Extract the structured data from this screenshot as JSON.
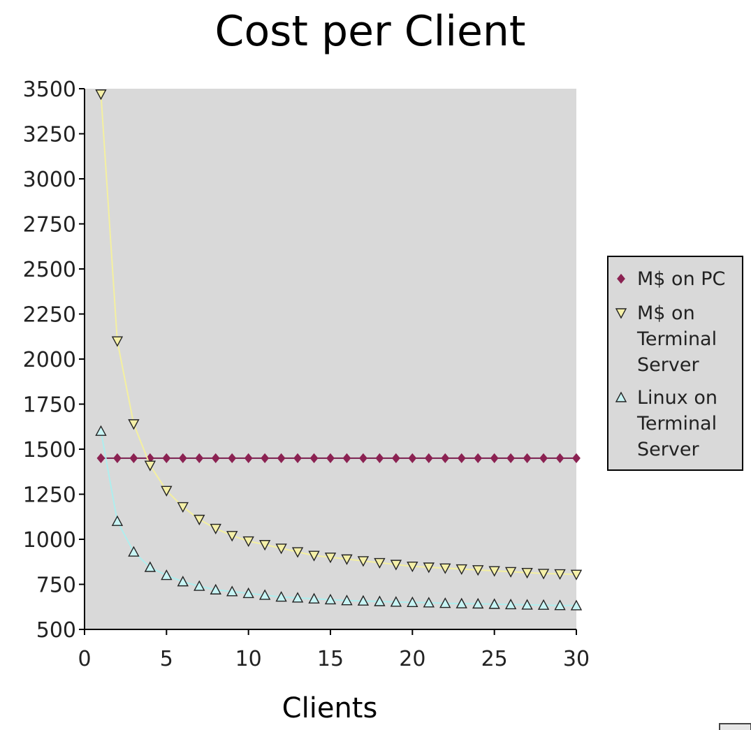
{
  "chart_data": {
    "type": "line",
    "title": "Cost per Client",
    "xlabel": "Clients",
    "ylabel": "",
    "xlim": [
      0,
      30
    ],
    "ylim": [
      500,
      3500
    ],
    "xticks": [
      "0",
      "5",
      "10",
      "15",
      "20",
      "25",
      "30"
    ],
    "yticks": [
      "500",
      "750",
      "1000",
      "1250",
      "1500",
      "1750",
      "2000",
      "2250",
      "2500",
      "2750",
      "3000",
      "3250",
      "3500"
    ],
    "grid": false,
    "legend_position": "right",
    "colors": {
      "plot_background": "#d9d9d9",
      "legend_background": "#d9d9d9"
    },
    "x": [
      1,
      2,
      3,
      4,
      5,
      6,
      7,
      8,
      9,
      10,
      11,
      12,
      13,
      14,
      15,
      16,
      17,
      18,
      19,
      20,
      21,
      22,
      23,
      24,
      25,
      26,
      27,
      28,
      29,
      30
    ],
    "series": [
      {
        "name": "M$ on PC",
        "marker": "diamond",
        "line_color": "#7a1e4e",
        "marker_color": "#8b2252",
        "values": [
          1450,
          1450,
          1450,
          1450,
          1450,
          1450,
          1450,
          1450,
          1450,
          1450,
          1450,
          1450,
          1450,
          1450,
          1450,
          1450,
          1450,
          1450,
          1450,
          1450,
          1450,
          1450,
          1450,
          1450,
          1450,
          1450,
          1450,
          1450,
          1450,
          1450
        ]
      },
      {
        "name": "M$ on Terminal Server",
        "marker": "triangle-down",
        "line_color": "#f4f0a0",
        "marker_color": "#f5f0a8",
        "values": [
          3470,
          2100,
          1640,
          1410,
          1270,
          1180,
          1110,
          1060,
          1020,
          990,
          970,
          950,
          930,
          910,
          900,
          890,
          880,
          870,
          860,
          850,
          845,
          840,
          835,
          830,
          825,
          820,
          815,
          810,
          808,
          805
        ]
      },
      {
        "name": "Linux on Terminal Server",
        "marker": "triangle-up",
        "line_color": "#aeeeee",
        "marker_color": "#c8f4f4",
        "values": [
          1600,
          1100,
          930,
          845,
          800,
          765,
          740,
          720,
          710,
          700,
          690,
          680,
          675,
          670,
          665,
          660,
          658,
          655,
          652,
          650,
          648,
          645,
          643,
          642,
          640,
          638,
          636,
          635,
          633,
          632
        ]
      }
    ],
    "legend_entries": [
      {
        "lines": [
          "M$ on PC"
        ]
      },
      {
        "lines": [
          "M$ on",
          "Terminal",
          "Server"
        ]
      },
      {
        "lines": [
          "Linux on",
          "Terminal",
          "Server"
        ]
      }
    ]
  }
}
